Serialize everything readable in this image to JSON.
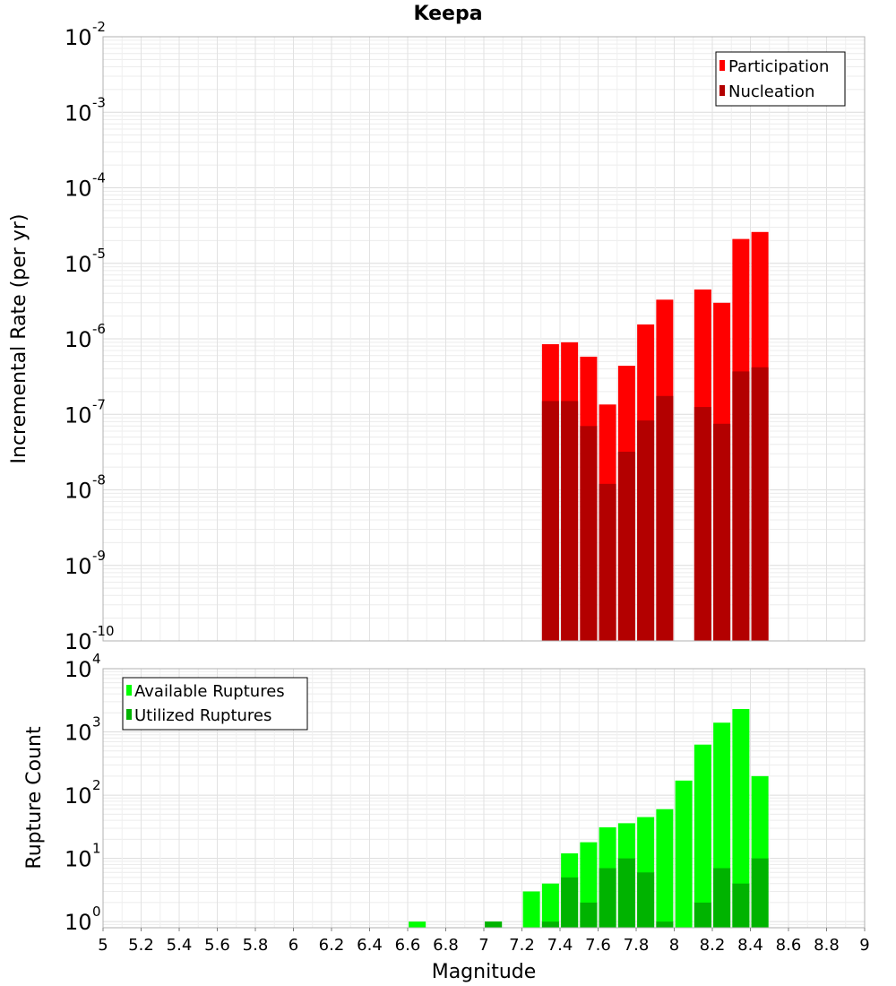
{
  "chart_data": [
    {
      "type": "bar",
      "title": "Keepa",
      "xlabel": "",
      "ylabel": "Incremental Rate (per yr)",
      "yscale": "log",
      "ylim": [
        1e-10,
        0.01
      ],
      "xlim": [
        5,
        9
      ],
      "legend_position": "top-right",
      "series": [
        {
          "name": "Participation",
          "color": "#ff0000",
          "x": [
            7.35,
            7.45,
            7.55,
            7.65,
            7.75,
            7.85,
            7.95,
            8.15,
            8.25,
            8.35,
            8.45
          ],
          "values": [
            8.5e-07,
            9e-07,
            5.8e-07,
            1.35e-07,
            4.4e-07,
            1.55e-06,
            3.3e-06,
            4.5e-06,
            3e-06,
            2.1e-05,
            2.6e-05
          ]
        },
        {
          "name": "Nucleation",
          "color": "#b30000",
          "x": [
            7.35,
            7.45,
            7.55,
            7.65,
            7.75,
            7.85,
            7.95,
            8.15,
            8.25,
            8.35,
            8.45
          ],
          "values": [
            1.5e-07,
            1.5e-07,
            7e-08,
            1.2e-08,
            3.2e-08,
            8.3e-08,
            1.75e-07,
            1.25e-07,
            7.5e-08,
            3.7e-07,
            4.2e-07
          ]
        }
      ]
    },
    {
      "type": "bar",
      "title": "",
      "xlabel": "Magnitude",
      "ylabel": "Rupture Count",
      "yscale": "log",
      "ylim": [
        0.8,
        10000
      ],
      "xlim": [
        5,
        9
      ],
      "x_ticks": [
        "5",
        "5.2",
        "5.4",
        "5.6",
        "5.8",
        "6",
        "6.2",
        "6.4",
        "6.6",
        "6.8",
        "7",
        "7.2",
        "7.4",
        "7.6",
        "7.8",
        "8",
        "8.2",
        "8.4",
        "8.6",
        "8.8",
        "9"
      ],
      "legend_position": "top-left",
      "series": [
        {
          "name": "Available Ruptures",
          "color": "#00ff00",
          "x": [
            6.65,
            7.05,
            7.25,
            7.35,
            7.45,
            7.55,
            7.65,
            7.75,
            7.85,
            7.95,
            8.05,
            8.15,
            8.25,
            8.35,
            8.45
          ],
          "values": [
            1,
            1,
            3,
            4,
            12,
            18,
            31,
            36,
            45,
            60,
            170,
            630,
            1400,
            2300,
            200
          ]
        },
        {
          "name": "Utilized Ruptures",
          "color": "#00b300",
          "x": [
            7.05,
            7.35,
            7.45,
            7.55,
            7.65,
            7.75,
            7.85,
            7.95,
            8.15,
            8.25,
            8.35,
            8.45
          ],
          "values": [
            1,
            1,
            5,
            2,
            7,
            10,
            6,
            1,
            2,
            7,
            4,
            10
          ]
        }
      ]
    }
  ]
}
